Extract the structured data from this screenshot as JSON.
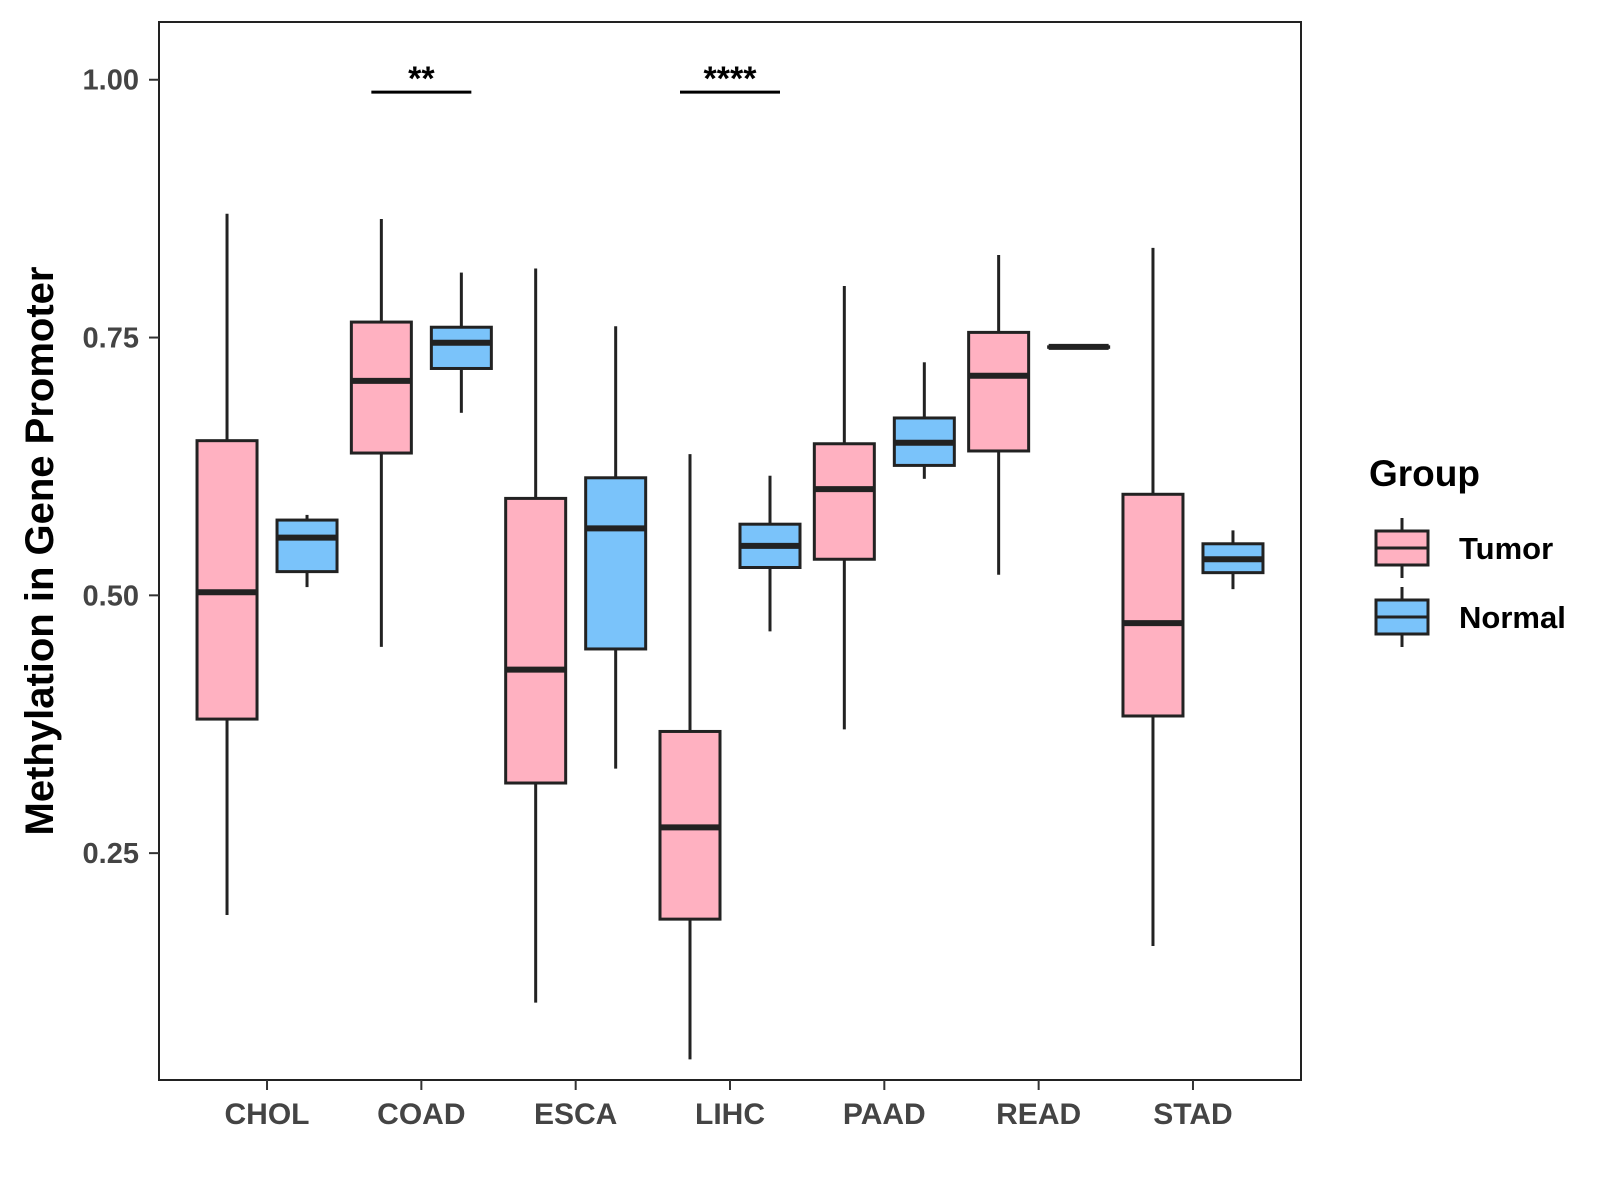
{
  "chart_data": {
    "type": "boxplot",
    "title": "",
    "xlabel": "",
    "ylabel": "Methylation in Gene Promoter",
    "ylim": [
      0.03,
      1.056
    ],
    "yticks": [
      0.25,
      0.5,
      0.75,
      1.0
    ],
    "ytick_labels": [
      "0.25",
      "0.50",
      "0.75",
      "1.00"
    ],
    "categories": [
      "CHOL",
      "COAD",
      "ESCA",
      "LIHC",
      "PAAD",
      "READ",
      "STAD"
    ],
    "legend": {
      "title": "Group",
      "position": "right",
      "entries": [
        {
          "name": "Tumor",
          "color": "#FFB1C1"
        },
        {
          "name": "Normal",
          "color": "#7AC3FA"
        }
      ]
    },
    "series": [
      {
        "name": "Tumor",
        "color": "#FFB1C1",
        "boxes": [
          {
            "min": 0.19,
            "q1": 0.38,
            "median": 0.503,
            "q3": 0.65,
            "max": 0.87
          },
          {
            "min": 0.45,
            "q1": 0.638,
            "median": 0.708,
            "q3": 0.765,
            "max": 0.865
          },
          {
            "min": 0.105,
            "q1": 0.318,
            "median": 0.428,
            "q3": 0.594,
            "max": 0.817
          },
          {
            "min": 0.05,
            "q1": 0.186,
            "median": 0.275,
            "q3": 0.368,
            "max": 0.637
          },
          {
            "min": 0.37,
            "q1": 0.535,
            "median": 0.603,
            "q3": 0.647,
            "max": 0.8
          },
          {
            "min": 0.52,
            "q1": 0.64,
            "median": 0.713,
            "q3": 0.755,
            "max": 0.83
          },
          {
            "min": 0.16,
            "q1": 0.383,
            "median": 0.473,
            "q3": 0.598,
            "max": 0.837
          }
        ]
      },
      {
        "name": "Normal",
        "color": "#7AC3FA",
        "boxes": [
          {
            "min": 0.508,
            "q1": 0.523,
            "median": 0.556,
            "q3": 0.573,
            "max": 0.578
          },
          {
            "min": 0.677,
            "q1": 0.72,
            "median": 0.745,
            "q3": 0.76,
            "max": 0.813
          },
          {
            "min": 0.332,
            "q1": 0.448,
            "median": 0.565,
            "q3": 0.614,
            "max": 0.761
          },
          {
            "min": 0.465,
            "q1": 0.527,
            "median": 0.548,
            "q3": 0.569,
            "max": 0.616
          },
          {
            "min": 0.613,
            "q1": 0.626,
            "median": 0.648,
            "q3": 0.672,
            "max": 0.726
          },
          {
            "min": 0.741,
            "q1": 0.741,
            "median": 0.741,
            "q3": 0.741,
            "max": 0.741
          },
          {
            "min": 0.506,
            "q1": 0.522,
            "median": 0.535,
            "q3": 0.55,
            "max": 0.563
          }
        ]
      }
    ],
    "annotations": [
      {
        "category": "COAD",
        "label": "**",
        "y": 0.988
      },
      {
        "category": "LIHC",
        "label": "****",
        "y": 0.988
      }
    ]
  }
}
